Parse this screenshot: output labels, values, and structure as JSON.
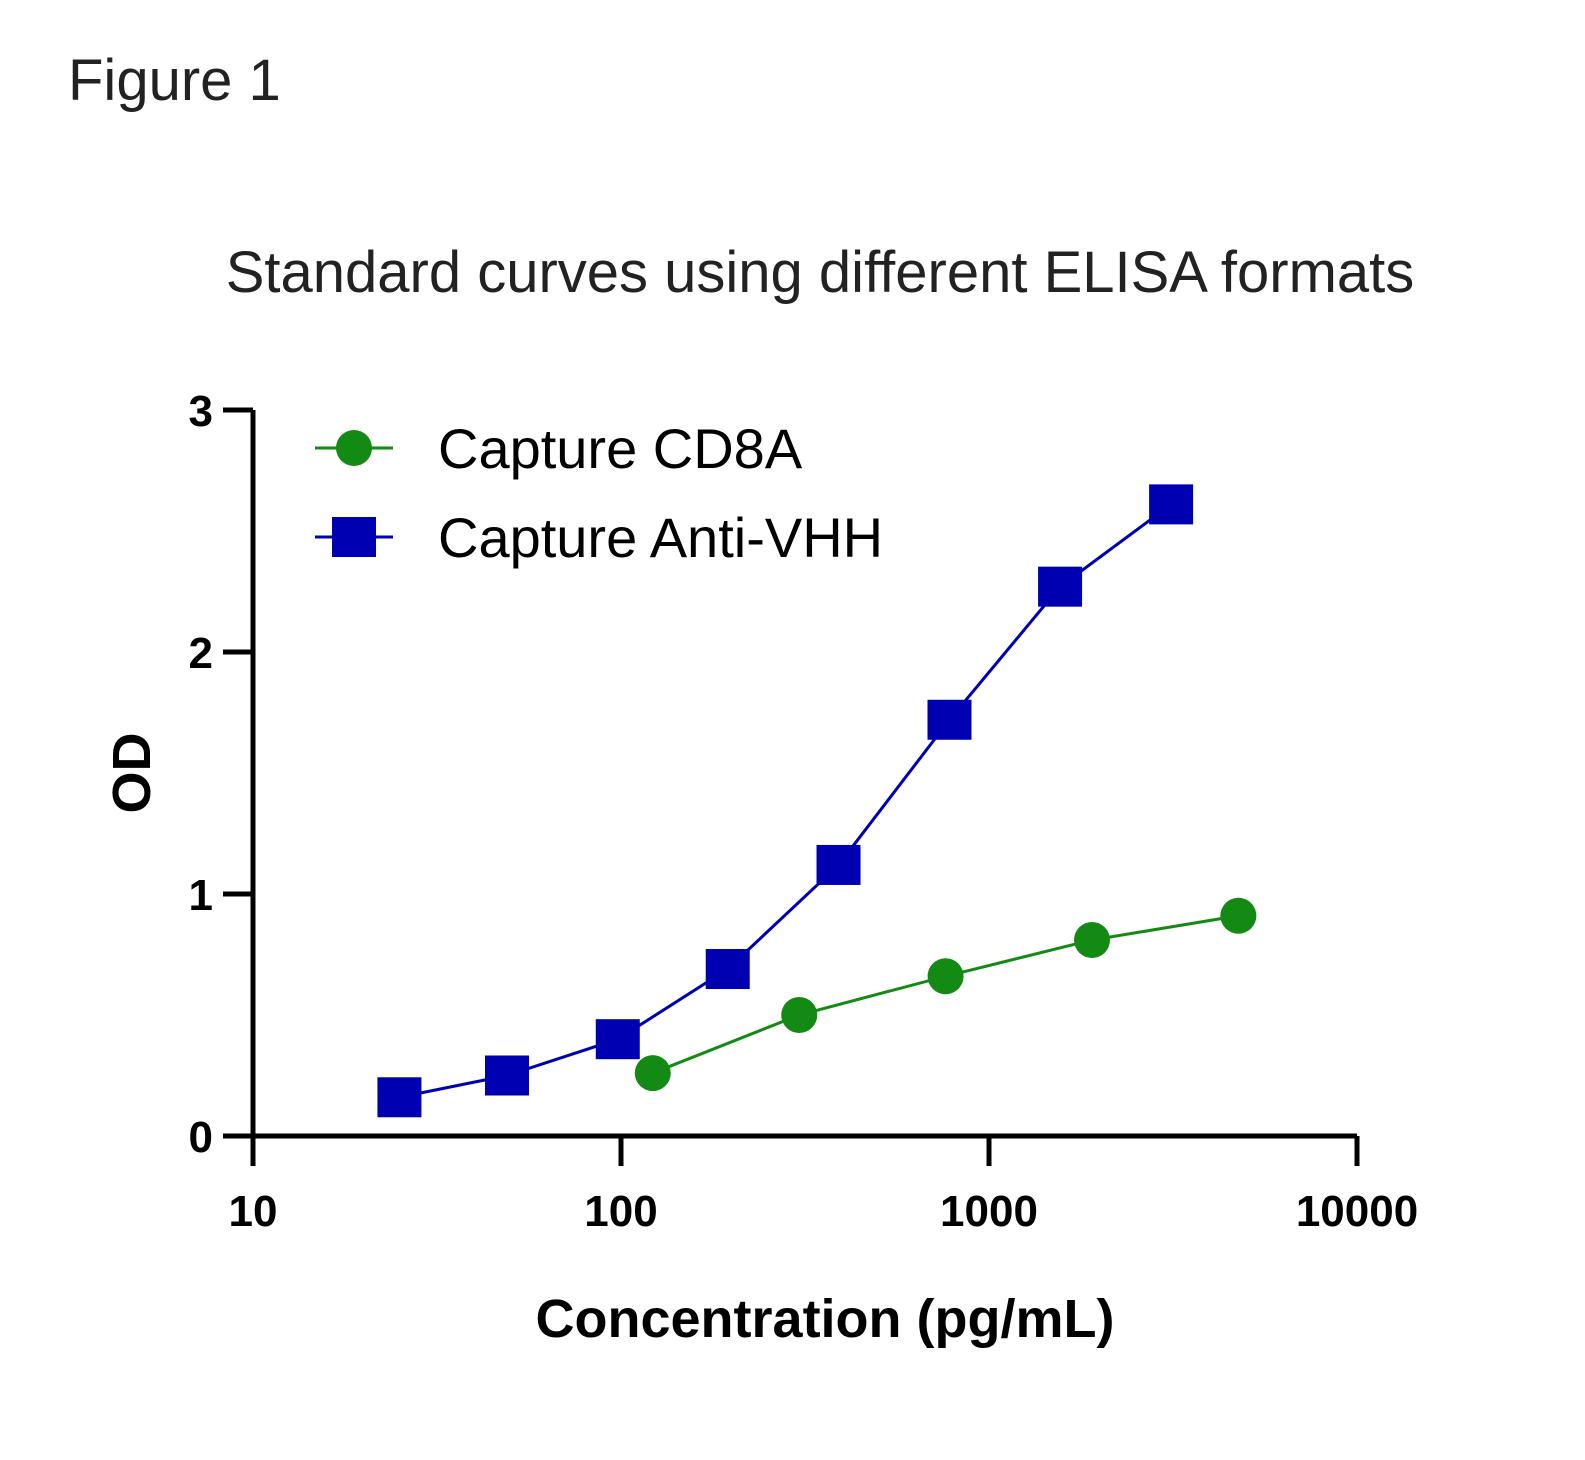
{
  "figure_label": "Figure 1",
  "chart_data": {
    "type": "line",
    "title": "Standard curves using different ELISA formats",
    "xlabel": "Concentration (pg/mL)",
    "ylabel": "OD",
    "x_scale": "log",
    "xlim": [
      10,
      10000
    ],
    "ylim": [
      0,
      3
    ],
    "x_ticks": [
      10,
      100,
      1000,
      10000
    ],
    "x_tick_labels": [
      "10",
      "100",
      "1000",
      "10000"
    ],
    "y_ticks": [
      0,
      1,
      2,
      3
    ],
    "y_tick_labels": [
      "0",
      "1",
      "2",
      "3"
    ],
    "grid": false,
    "legend_position": "top-left",
    "series": [
      {
        "name": "Capture CD8A",
        "marker": "circle",
        "color": "#138a13",
        "points": [
          {
            "x": 122,
            "y": 0.26
          },
          {
            "x": 305,
            "y": 0.5
          },
          {
            "x": 762,
            "y": 0.66
          },
          {
            "x": 1905,
            "y": 0.81
          },
          {
            "x": 4760,
            "y": 0.91
          }
        ]
      },
      {
        "name": "Capture Anti-VHH",
        "marker": "square",
        "color": "#0000b3",
        "points": [
          {
            "x": 25,
            "y": 0.16
          },
          {
            "x": 49,
            "y": 0.25
          },
          {
            "x": 98,
            "y": 0.4
          },
          {
            "x": 195,
            "y": 0.69
          },
          {
            "x": 390,
            "y": 1.12
          },
          {
            "x": 781,
            "y": 1.72
          },
          {
            "x": 1560,
            "y": 2.27
          },
          {
            "x": 3125,
            "y": 2.61
          }
        ]
      }
    ]
  }
}
